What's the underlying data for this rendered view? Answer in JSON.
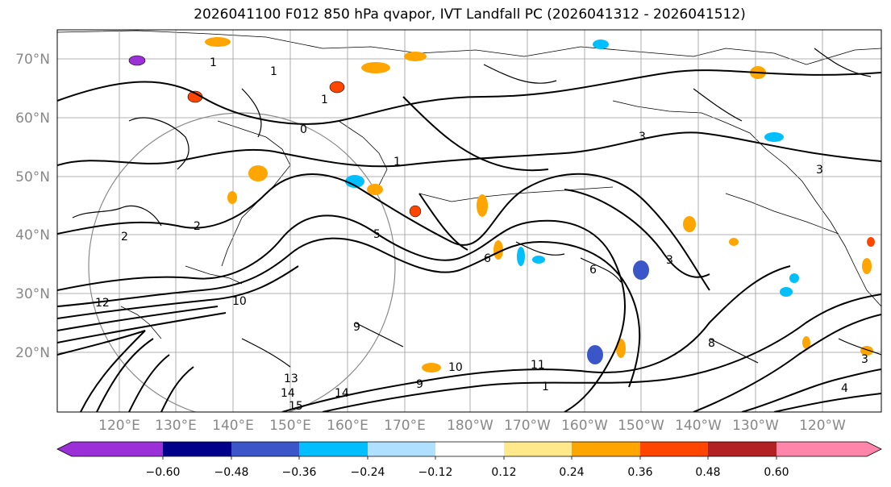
{
  "title": "2026041100 F012 850 hPa qvapor, IVT Landfall PC (2026041312 - 2026041512)",
  "lat_labels": [
    "70°N",
    "60°N",
    "50°N",
    "40°N",
    "30°N",
    "20°N"
  ],
  "lon_labels": [
    "120°E",
    "130°E",
    "140°E",
    "150°E",
    "160°E",
    "170°E",
    "180°W",
    "170°W",
    "160°W",
    "150°W",
    "140°W",
    "130°W",
    "120°W"
  ],
  "colorbar": {
    "ticks": [
      "−0.60",
      "−0.48",
      "−0.36",
      "−0.24",
      "−0.12",
      "0.12",
      "0.24",
      "0.36",
      "0.48",
      "0.60"
    ],
    "colors": [
      "#9b30d9",
      "#00008b",
      "#3a56c8",
      "#00bfff",
      "#b0e0ff",
      "#ffffff",
      "#ffe98a",
      "#ffa500",
      "#ff4500",
      "#b22222",
      "#ff85aa"
    ]
  },
  "contour_labels": [
    "1",
    "1",
    "1",
    "1",
    "0",
    "2",
    "2",
    "3",
    "3",
    "5",
    "6",
    "6",
    "9",
    "9",
    "10",
    "10",
    "11",
    "12",
    "13",
    "14",
    "14",
    "15",
    "1",
    "3",
    "3",
    "4",
    "8"
  ],
  "colors": {
    "ocean": "#ffffff",
    "line": "#000000",
    "grid": "#9a9a9a",
    "tick_text": "#888888"
  }
}
